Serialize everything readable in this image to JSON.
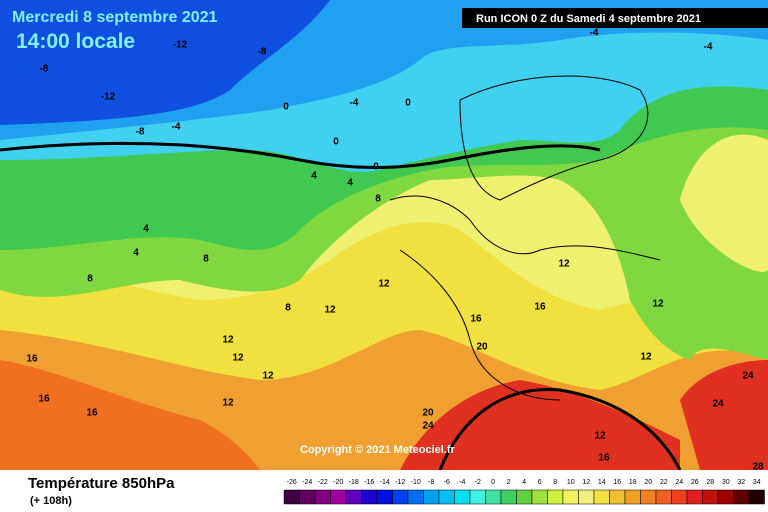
{
  "header": {
    "date": "Mercredi 8 septembre 2021",
    "time": "14:00 locale",
    "run": "Run ICON 0 Z du Samedi 4 septembre 2021"
  },
  "copyright": "Copyright © 2021 Meteociel.fr",
  "footer": {
    "title": "Température 850hPa",
    "lead": "(+ 108h)"
  },
  "contour_labels": [
    -8,
    -12,
    -8,
    -4,
    0,
    -4,
    0,
    0,
    0,
    4,
    4,
    8,
    4,
    4,
    8,
    8,
    8,
    12,
    12,
    16,
    16,
    12,
    12,
    12,
    16,
    16,
    16,
    12,
    12,
    12,
    12,
    20,
    20,
    24,
    24,
    24,
    28,
    12,
    16,
    -8,
    -12,
    -4,
    -4
  ],
  "scale": {
    "labels": [
      -26,
      -24,
      -22,
      -20,
      -18,
      -16,
      -14,
      -12,
      -10,
      -8,
      -6,
      -4,
      -2,
      0,
      2,
      4,
      6,
      8,
      10,
      12,
      14,
      16,
      18,
      20,
      22,
      24,
      26,
      28,
      30,
      32,
      34
    ],
    "colors": [
      "#400040",
      "#600060",
      "#800080",
      "#a000a0",
      "#6000c0",
      "#2000d0",
      "#0010e0",
      "#0040f0",
      "#0070f0",
      "#00a0f0",
      "#00c0f0",
      "#00e0f0",
      "#40f0e0",
      "#40e0a0",
      "#40d060",
      "#60d040",
      "#a0e040",
      "#d0f040",
      "#f0f060",
      "#f0f080",
      "#f0e040",
      "#f0c030",
      "#f0a020",
      "#f08020",
      "#f06020",
      "#f04020",
      "#e02020",
      "#c01010",
      "#a00000",
      "#600000",
      "#200000"
    ]
  }
}
